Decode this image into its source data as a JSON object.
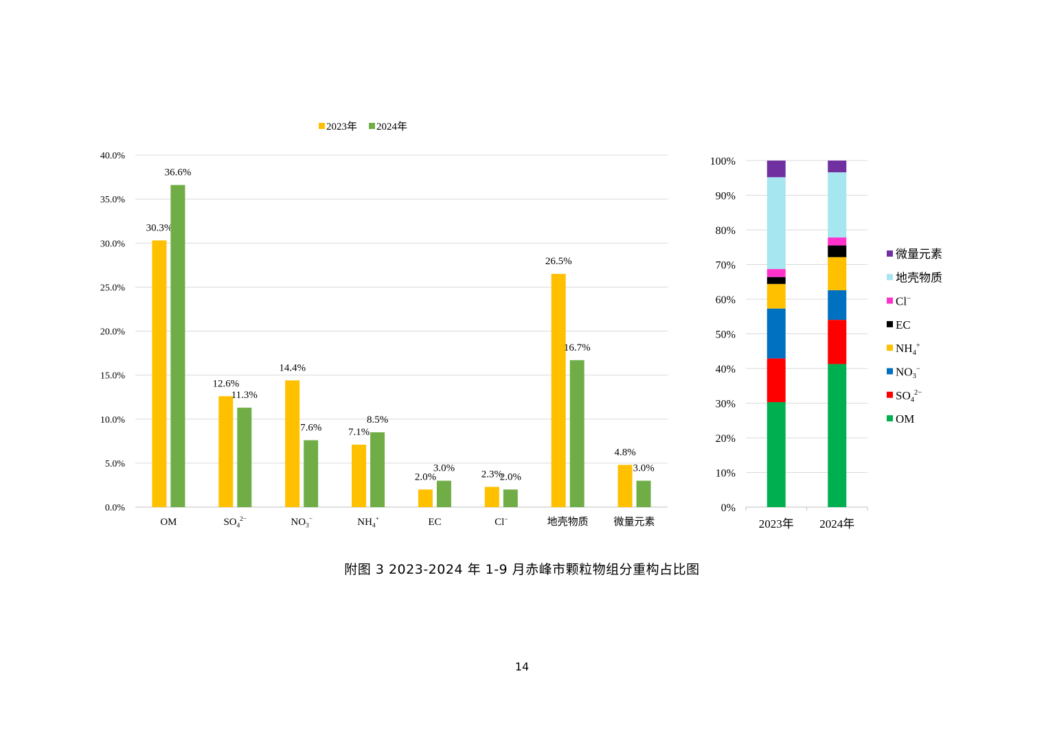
{
  "caption": "附图 3  2023-2024 年 1-9 月赤峰市颗粒物组分重构占比图",
  "page_number": "14",
  "chart_data": [
    {
      "type": "bar",
      "title": "",
      "xlabel": "",
      "ylabel": "",
      "ylim": [
        0,
        40
      ],
      "y_ticks": [
        "0.0%",
        "5.0%",
        "10.0%",
        "15.0%",
        "20.0%",
        "25.0%",
        "30.0%",
        "35.0%",
        "40.0%"
      ],
      "grid": true,
      "legend_placement": "top",
      "categories": [
        {
          "base": "OM",
          "sub": "",
          "sup": ""
        },
        {
          "base": "SO",
          "sub": "4",
          "sup": "2−"
        },
        {
          "base": "NO",
          "sub": "3",
          "sup": "−"
        },
        {
          "base": "NH",
          "sub": "4",
          "sup": "+"
        },
        {
          "base": "EC",
          "sub": "",
          "sup": ""
        },
        {
          "base": "Cl",
          "sub": "",
          "sup": "−"
        },
        {
          "base": "地壳物质",
          "sub": "",
          "sup": ""
        },
        {
          "base": "微量元素",
          "sub": "",
          "sup": ""
        }
      ],
      "series": [
        {
          "name": "2023年",
          "color": "#FFC000",
          "values": [
            30.3,
            12.6,
            14.4,
            7.1,
            2.0,
            2.3,
            26.5,
            4.8
          ],
          "labels": [
            "30.3%",
            "12.6%",
            "14.4%",
            "7.1%",
            "2.0%",
            "2.3%",
            "26.5%",
            "4.8%"
          ]
        },
        {
          "name": "2024年",
          "color": "#70AD47",
          "values": [
            36.6,
            11.3,
            7.6,
            8.5,
            3.0,
            2.0,
            16.7,
            3.0
          ],
          "labels": [
            "36.6%",
            "11.3%",
            "7.6%",
            "8.5%",
            "3.0%",
            "2.0%",
            "16.7%",
            "3.0%"
          ]
        }
      ]
    },
    {
      "type": "bar",
      "stacked": "percent",
      "title": "",
      "ylim": [
        0,
        100
      ],
      "y_ticks": [
        "0%",
        "10%",
        "20%",
        "30%",
        "40%",
        "50%",
        "60%",
        "70%",
        "80%",
        "90%",
        "100%"
      ],
      "grid": true,
      "legend_placement": "right",
      "categories": [
        "2023年",
        "2024年"
      ],
      "series": [
        {
          "name": {
            "base": "OM",
            "sub": "",
            "sup": ""
          },
          "color": "#00B050",
          "values": [
            30.3,
            41.5
          ]
        },
        {
          "name": {
            "base": "SO",
            "sub": "4",
            "sup": "2−"
          },
          "color": "#FF0000",
          "values": [
            12.6,
            12.8
          ]
        },
        {
          "name": {
            "base": "NO",
            "sub": "3",
            "sup": "−"
          },
          "color": "#0070C0",
          "values": [
            14.4,
            8.6
          ]
        },
        {
          "name": {
            "base": "NH",
            "sub": "4",
            "sup": "+"
          },
          "color": "#FFC000",
          "values": [
            7.1,
            9.6
          ]
        },
        {
          "name": {
            "base": "EC",
            "sub": "",
            "sup": ""
          },
          "color": "#000000",
          "values": [
            2.0,
            3.4
          ]
        },
        {
          "name": {
            "base": "Cl",
            "sub": "",
            "sup": "−"
          },
          "color": "#FF33CC",
          "values": [
            2.3,
            2.3
          ]
        },
        {
          "name": {
            "base": "地壳物质",
            "sub": "",
            "sup": ""
          },
          "color": "#A6E6F0",
          "values": [
            26.5,
            18.9
          ]
        },
        {
          "name": {
            "base": "微量元素",
            "sub": "",
            "sup": ""
          },
          "color": "#7030A0",
          "values": [
            4.8,
            3.4
          ]
        }
      ]
    }
  ]
}
